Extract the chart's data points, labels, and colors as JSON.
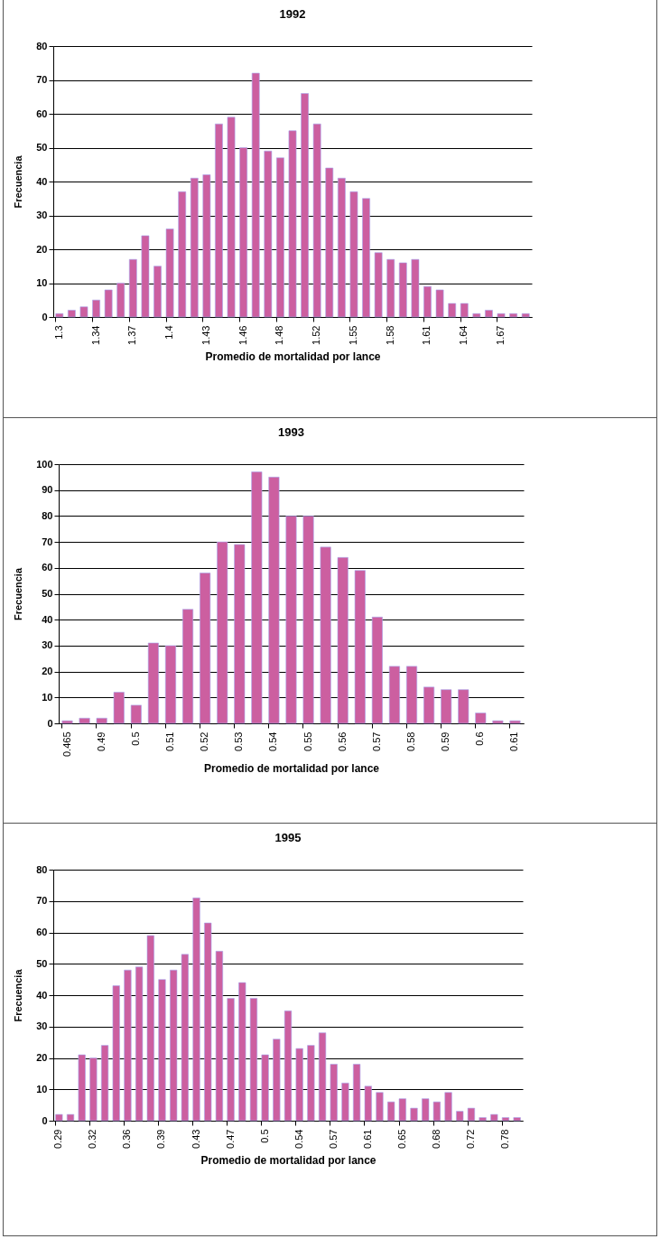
{
  "chart_data": [
    {
      "type": "bar",
      "title": "1992",
      "xlabel": "Promedio de mortalidad por lance",
      "ylabel": "Frecuencia",
      "color": "#cc5fa0",
      "grid": "y",
      "ylim": [
        0,
        80
      ],
      "yticks": [
        0,
        10,
        20,
        30,
        40,
        50,
        60,
        70,
        80
      ],
      "categories": [
        "1.3",
        null,
        null,
        "1.34",
        null,
        null,
        "1.37",
        null,
        null,
        "1.4",
        null,
        null,
        "1.43",
        null,
        null,
        "1.46",
        null,
        null,
        "1.48",
        null,
        null,
        "1.52",
        null,
        null,
        "1.55",
        null,
        null,
        "1.58",
        null,
        null,
        "1.61",
        null,
        null,
        "1.64",
        null,
        null,
        "1.67",
        null,
        null
      ],
      "values": [
        1,
        2,
        3,
        5,
        8,
        10,
        17,
        24,
        15,
        26,
        37,
        41,
        42,
        57,
        59,
        50,
        72,
        49,
        47,
        55,
        66,
        57,
        44,
        41,
        37,
        35,
        19,
        17,
        16,
        17,
        9,
        8,
        4,
        4,
        1,
        2,
        1,
        1,
        1
      ]
    },
    {
      "type": "bar",
      "title": "1993",
      "xlabel": "Promedio de mortalidad por lance",
      "ylabel": "Frecuencia",
      "color": "#cc5fa0",
      "grid": "y",
      "ylim": [
        0,
        100
      ],
      "yticks": [
        0,
        10,
        20,
        30,
        40,
        50,
        60,
        70,
        80,
        90,
        100
      ],
      "categories": [
        "0.465",
        null,
        "0.49",
        null,
        "0.5",
        null,
        "0.51",
        null,
        "0.52",
        null,
        "0.53",
        null,
        "0.54",
        null,
        "0.55",
        null,
        "0.56",
        null,
        "0.57",
        null,
        "0.58",
        null,
        "0.59",
        null,
        "0.6",
        null,
        "0.61"
      ],
      "values": [
        1,
        2,
        2,
        12,
        7,
        31,
        30,
        44,
        58,
        70,
        69,
        97,
        95,
        80,
        80,
        68,
        64,
        59,
        41,
        22,
        22,
        14,
        13,
        13,
        4,
        1,
        1
      ]
    },
    {
      "type": "bar",
      "title": "1995",
      "xlabel": "Promedio de mortalidad por lance",
      "ylabel": "Frecuencia",
      "color": "#cc5fa0",
      "grid": "y",
      "ylim": [
        0,
        80
      ],
      "yticks": [
        0,
        10,
        20,
        30,
        40,
        50,
        60,
        70,
        80
      ],
      "categories": [
        "0.29",
        null,
        null,
        "0.32",
        null,
        null,
        "0.36",
        null,
        null,
        "0.39",
        null,
        null,
        "0.43",
        null,
        null,
        "0.47",
        null,
        null,
        "0.5",
        null,
        null,
        "0.54",
        null,
        null,
        "0.57",
        null,
        null,
        "0.61",
        null,
        null,
        "0.65",
        null,
        null,
        "0.68",
        null,
        null,
        "0.72",
        null,
        null,
        "0.78",
        null
      ],
      "values": [
        2,
        2,
        21,
        20,
        24,
        43,
        48,
        49,
        59,
        45,
        48,
        53,
        71,
        63,
        54,
        39,
        44,
        39,
        21,
        26,
        35,
        23,
        24,
        28,
        18,
        12,
        18,
        11,
        9,
        6,
        7,
        4,
        7,
        6,
        9,
        3,
        4,
        1,
        2,
        1,
        1
      ]
    }
  ]
}
